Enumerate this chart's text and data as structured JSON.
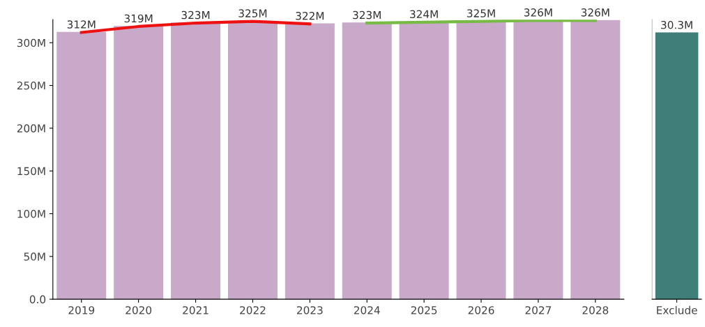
{
  "chart_data": [
    {
      "type": "bar",
      "categories": [
        "2019",
        "2020",
        "2021",
        "2022",
        "2023",
        "2024",
        "2025",
        "2026",
        "2027",
        "2028"
      ],
      "series": [
        {
          "color": "#c9a9c9",
          "values": [
            312,
            319,
            323,
            325,
            322,
            323,
            324,
            325,
            326,
            326
          ],
          "value_labels": [
            "312M",
            "319M",
            "323M",
            "325M",
            "322M",
            "323M",
            "324M",
            "325M",
            "326M",
            "326M"
          ]
        },
        {
          "type": "line",
          "color": "#ee1111",
          "values": [
            312,
            319,
            323,
            325,
            322,
            null,
            null,
            null,
            null,
            null
          ]
        },
        {
          "type": "line",
          "color": "#77bb44",
          "values": [
            null,
            null,
            null,
            null,
            null,
            323,
            324,
            325,
            326,
            326
          ]
        }
      ],
      "ylim": [
        0,
        327
      ],
      "yticks": [
        {
          "value": 0,
          "label": "0.0"
        },
        {
          "value": 50,
          "label": "50M"
        },
        {
          "value": 100,
          "label": "100M"
        },
        {
          "value": 150,
          "label": "150M"
        },
        {
          "value": 200,
          "label": "200M"
        },
        {
          "value": 250,
          "label": "250M"
        },
        {
          "value": 300,
          "label": "300M"
        }
      ]
    },
    {
      "type": "other",
      "categories": [
        "Exclude"
      ],
      "series": [
        {
          "color": "#3f7f7a",
          "values": [
            30.3
          ],
          "value_labels": [
            "30.3M"
          ]
        }
      ]
    }
  ]
}
